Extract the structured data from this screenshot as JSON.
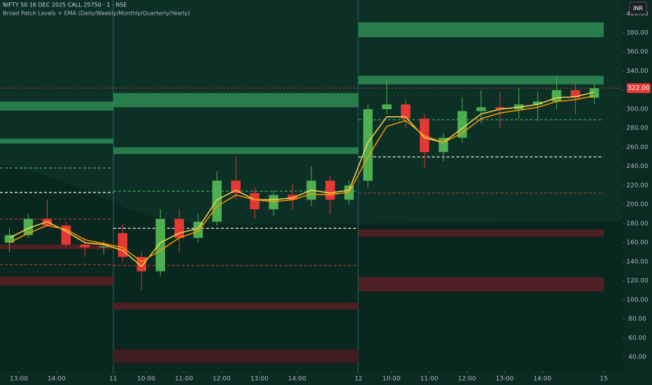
{
  "chart_data": {
    "type": "candlestick",
    "title": "NIFTY 50 16 DEC 2025 CALL 25750 · 1 · NSE",
    "subtitle": "Broad Patch Levels + EMA (Daily/Weekly/Monthly/Quarterly/Yearly)",
    "currency": "INR",
    "open": [
      160,
      168,
      185,
      178,
      158,
      155,
      170,
      145,
      130,
      185,
      165,
      182,
      225,
      212,
      195,
      210,
      205,
      225,
      205,
      225,
      300,
      305,
      290,
      255,
      270,
      298,
      302,
      300,
      305,
      308,
      320,
      312
    ],
    "high": [
      175,
      190,
      205,
      182,
      165,
      162,
      180,
      150,
      195,
      195,
      190,
      235,
      250,
      218,
      215,
      222,
      240,
      230,
      225,
      305,
      332,
      310,
      295,
      275,
      312,
      320,
      318,
      322,
      318,
      335,
      330,
      328
    ],
    "low": [
      150,
      165,
      180,
      155,
      145,
      148,
      140,
      110,
      125,
      150,
      160,
      178,
      205,
      185,
      188,
      195,
      198,
      190,
      200,
      218,
      295,
      280,
      238,
      245,
      265,
      285,
      280,
      290,
      288,
      300,
      295,
      305
    ],
    "close": [
      168,
      185,
      178,
      158,
      155,
      156,
      145,
      130,
      185,
      165,
      182,
      225,
      212,
      195,
      210,
      205,
      225,
      205,
      220,
      300,
      305,
      290,
      255,
      270,
      298,
      302,
      300,
      305,
      308,
      320,
      312,
      322
    ],
    "up_color": "#4caf50",
    "down_color": "#e53935",
    "ema": [
      {
        "color": "#ffd54f",
        "values": [
          165,
          175,
          182,
          172,
          160,
          158,
          152,
          135,
          160,
          170,
          175,
          205,
          215,
          205,
          205,
          207,
          215,
          212,
          215,
          265,
          292,
          292,
          270,
          265,
          280,
          295,
          300,
          302,
          305,
          312,
          313,
          318
        ]
      },
      {
        "color": "#ff9800",
        "values": [
          160,
          170,
          178,
          174,
          163,
          159,
          155,
          140,
          152,
          165,
          172,
          198,
          210,
          205,
          203,
          205,
          211,
          210,
          213,
          250,
          282,
          288,
          272,
          265,
          275,
          290,
          296,
          299,
          302,
          308,
          310,
          314
        ]
      }
    ],
    "zones": [
      {
        "x": [
          0,
          6
        ],
        "y": [
          298.5,
          308
        ],
        "color": "#2f8a52"
      },
      {
        "x": [
          0,
          6
        ],
        "y": [
          264,
          269
        ],
        "color": "#2f8a52"
      },
      {
        "x": [
          0,
          6
        ],
        "y": [
          153,
          158
        ],
        "color": "#5a1e24"
      },
      {
        "x": [
          0,
          6
        ],
        "y": [
          115,
          124.5
        ],
        "color": "#5a1e24"
      },
      {
        "x": [
          6,
          19
        ],
        "y": [
          302,
          317
        ],
        "color": "#2f8a52"
      },
      {
        "x": [
          6,
          19
        ],
        "y": [
          253,
          260
        ],
        "color": "#2f8a52"
      },
      {
        "x": [
          6,
          19
        ],
        "y": [
          90,
          97
        ],
        "color": "#5a1e24"
      },
      {
        "x": [
          6,
          19
        ],
        "y": [
          34,
          48
        ],
        "color": "#4a1c22"
      },
      {
        "x": [
          19,
          32
        ],
        "y": [
          375.6,
          391
        ],
        "color": "#2f8a52"
      },
      {
        "x": [
          19,
          32
        ],
        "y": [
          326,
          335
        ],
        "color": "#2f8a52"
      },
      {
        "x": [
          19,
          32
        ],
        "y": [
          166.3,
          173.7
        ],
        "color": "#5a1e24"
      },
      {
        "x": [
          19,
          32
        ],
        "y": [
          109,
          123.8
        ],
        "color": "#5a1e24"
      }
    ],
    "levels": [
      {
        "x": [
          0,
          6
        ],
        "y": 212.6,
        "color": "#d0d0d0"
      },
      {
        "x": [
          0,
          6
        ],
        "y": 238.3,
        "color": "#3f8f5a"
      },
      {
        "x": [
          0,
          6
        ],
        "y": 184.7,
        "color": "#8a3a3a"
      },
      {
        "x": [
          0,
          6
        ],
        "y": 137,
        "color": "#8a3a3a"
      },
      {
        "x": [
          6,
          19
        ],
        "y": 175,
        "color": "#d0d0d0"
      },
      {
        "x": [
          6,
          19
        ],
        "y": 214,
        "color": "#3f8f5a"
      },
      {
        "x": [
          6,
          19
        ],
        "y": 136,
        "color": "#8a3a3a"
      },
      {
        "x": [
          19,
          32
        ],
        "y": 250,
        "color": "#d0d0d0"
      },
      {
        "x": [
          19,
          32
        ],
        "y": 289,
        "color": "#3f8f5a"
      },
      {
        "x": [
          19,
          32
        ],
        "y": 212,
        "color": "#8a3a3a"
      }
    ],
    "last_price": {
      "value": 322,
      "label": "322.00"
    },
    "last_price_color": "#e53935",
    "xlim": [
      0,
      33
    ],
    "ylim": [
      25.4,
      414.5
    ],
    "yticks": [
      {
        "value": 40,
        "label": "40.00"
      },
      {
        "value": 60,
        "label": "60.00"
      },
      {
        "value": 80,
        "label": "80.00"
      },
      {
        "value": 100,
        "label": "100.00"
      },
      {
        "value": 120,
        "label": "120.00"
      },
      {
        "value": 140,
        "label": "140.00"
      },
      {
        "value": 160,
        "label": "160.00"
      },
      {
        "value": 180,
        "label": "180.00"
      },
      {
        "value": 200,
        "label": "200.00"
      },
      {
        "value": 220,
        "label": "220.00"
      },
      {
        "value": 240,
        "label": "240.00"
      },
      {
        "value": 260,
        "label": "260.00"
      },
      {
        "value": 280,
        "label": "280.00"
      },
      {
        "value": 300,
        "label": "300.00"
      },
      {
        "value": 320,
        "label": "320.00"
      },
      {
        "value": 340,
        "label": "340.00"
      },
      {
        "value": 360,
        "label": "360.00"
      },
      {
        "value": 380,
        "label": "380.00"
      },
      {
        "value": 400,
        "label": "400.00"
      }
    ],
    "xticks": [
      {
        "value": 1,
        "label": "13:00"
      },
      {
        "value": 3,
        "label": "14:00"
      },
      {
        "value": 6,
        "label": "11"
      },
      {
        "value": 7.75,
        "label": "10:00"
      },
      {
        "value": 9.75,
        "label": "11:00"
      },
      {
        "value": 11.75,
        "label": "12:00"
      },
      {
        "value": 13.75,
        "label": "13:00"
      },
      {
        "value": 15.75,
        "label": "14:00"
      },
      {
        "value": 19,
        "label": "12"
      },
      {
        "value": 20.75,
        "label": "10:00"
      },
      {
        "value": 22.75,
        "label": "11:00"
      },
      {
        "value": 24.75,
        "label": "12:00"
      },
      {
        "value": 26.75,
        "label": "13:00"
      },
      {
        "value": 28.75,
        "label": "14:00"
      },
      {
        "value": 32,
        "label": "15"
      }
    ]
  }
}
